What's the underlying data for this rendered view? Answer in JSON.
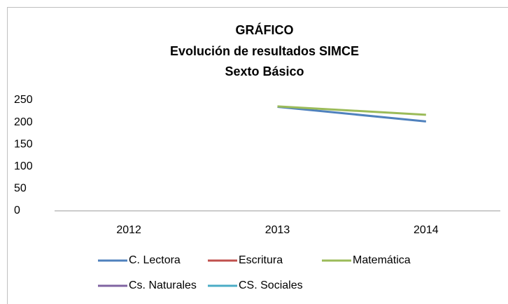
{
  "chart_data": {
    "type": "line",
    "title": [
      "GRÁFICO",
      "Evolución de resultados SIMCE",
      "Sexto Básico"
    ],
    "categories": [
      "2012",
      "2013",
      "2014"
    ],
    "series": [
      {
        "name": "C. Lectora",
        "color": "#4f81bd",
        "values": [
          null,
          235,
          202
        ]
      },
      {
        "name": "Escritura",
        "color": "#c0504d",
        "values": [
          null,
          null,
          null
        ]
      },
      {
        "name": "Matemática",
        "color": "#9bbb59",
        "values": [
          null,
          236,
          217
        ]
      },
      {
        "name": "Cs. Naturales",
        "color": "#8064a2",
        "values": [
          null,
          null,
          null
        ]
      },
      {
        "name": "CS. Sociales",
        "color": "#4bacc6",
        "values": [
          null,
          null,
          null
        ]
      }
    ],
    "ylim": [
      0,
      250
    ],
    "yticks": [
      0,
      50,
      100,
      150,
      200,
      250
    ],
    "grid": false,
    "legend": "bottom"
  }
}
